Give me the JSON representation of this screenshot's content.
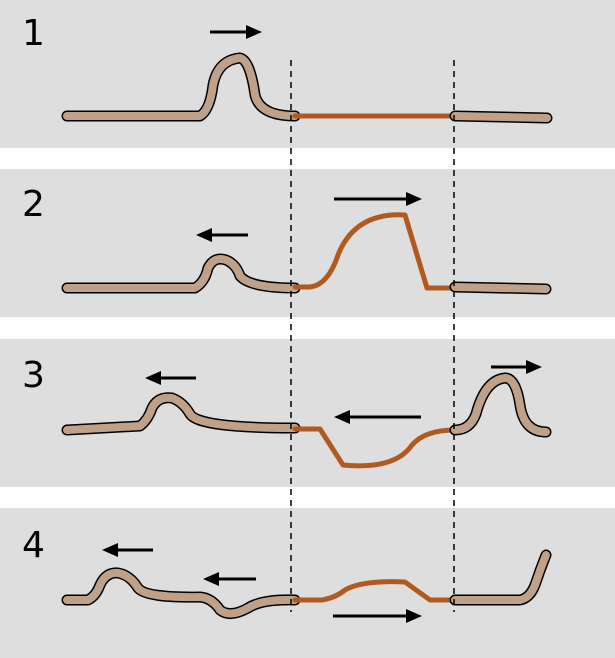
{
  "panels": [
    {
      "number": "1"
    },
    {
      "number": "2"
    },
    {
      "number": "3"
    },
    {
      "number": "4"
    }
  ],
  "colors": {
    "panel_background": "#dedede",
    "rope_fill": "#bfa18a",
    "rope_outline": "#000000",
    "rod": "#b05a22",
    "arrow": "#000000",
    "divider": "#000000"
  }
}
